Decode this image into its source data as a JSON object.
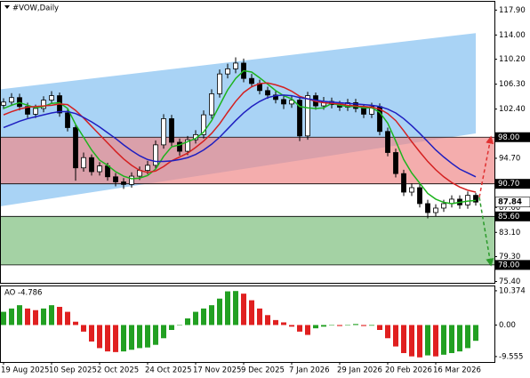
{
  "chart_data": [
    {
      "type": "candlestick",
      "title": "#VOW,Daily",
      "ylim": [
        75.2,
        119.2
      ],
      "yticks": [
        {
          "value": 117.9,
          "label": "117.90"
        },
        {
          "value": 114,
          "label": "114.00"
        },
        {
          "value": 110.2,
          "label": "110.20"
        },
        {
          "value": 106.3,
          "label": "106.30"
        },
        {
          "value": 102.4,
          "label": "102.40"
        },
        {
          "value": 94.7,
          "label": "94.70"
        },
        {
          "value": 87,
          "label": "87.00"
        },
        {
          "value": 83.1,
          "label": "83.10"
        },
        {
          "value": 79.3,
          "label": "79.30"
        },
        {
          "value": 75.4,
          "label": "75.40"
        }
      ],
      "open": [
        103.0,
        103.5,
        104.2,
        102.8,
        101.6,
        102.5,
        103.8,
        104.5,
        101.8,
        99.5,
        93.2,
        94.8,
        92.6,
        93.5,
        91.8,
        91.0,
        90.6,
        91.9,
        92.8,
        93.6,
        96.8,
        100.9,
        97.2,
        95.8,
        97.6,
        98.4,
        101.5,
        104.8,
        107.9,
        108.7,
        109.6,
        107.2,
        106.4,
        105.3,
        104.6,
        103.9,
        103.2,
        103.8,
        98.2,
        104.5,
        102.9,
        103.6,
        103.1,
        102.7,
        103.4,
        102.5,
        101.6,
        102.8,
        98.9,
        95.6,
        92.3,
        89.4,
        90.1,
        87.6,
        86.2,
        86.9,
        87.6,
        88.3,
        87.4,
        88.9
      ],
      "high": [
        104.1,
        104.9,
        104.8,
        103.4,
        103.1,
        104.4,
        105.2,
        105.0,
        102.4,
        100.1,
        95.6,
        95.3,
        94.1,
        94.0,
        92.4,
        91.6,
        92.5,
        93.4,
        94.3,
        97.5,
        101.6,
        101.5,
        97.8,
        98.2,
        99.1,
        102.2,
        105.5,
        108.6,
        109.5,
        110.5,
        110.3,
        107.9,
        107.0,
        105.9,
        105.2,
        104.5,
        104.4,
        104.3,
        105.1,
        105.0,
        104.3,
        104.2,
        103.7,
        104.0,
        104.0,
        103.1,
        103.4,
        103.3,
        99.5,
        96.2,
        92.9,
        90.8,
        90.7,
        88.2,
        87.5,
        88.2,
        88.9,
        88.9,
        89.5,
        89.3
      ],
      "low": [
        102.4,
        102.9,
        102.2,
        101.0,
        101.0,
        101.9,
        103.2,
        101.2,
        98.9,
        91.2,
        92.6,
        92.0,
        92.0,
        91.2,
        90.3,
        89.9,
        90.1,
        91.3,
        92.2,
        93.0,
        96.2,
        96.6,
        95.1,
        95.2,
        97.0,
        97.8,
        100.9,
        104.2,
        107.2,
        108.0,
        106.6,
        105.8,
        104.7,
        104.0,
        103.3,
        102.4,
        102.6,
        97.4,
        97.6,
        102.3,
        102.3,
        102.5,
        102.1,
        102.1,
        101.9,
        101.0,
        101.0,
        98.3,
        95.0,
        91.7,
        88.8,
        88.8,
        87.0,
        85.3,
        85.6,
        86.3,
        87.0,
        86.8,
        86.8,
        87.3
      ],
      "close": [
        103.5,
        104.2,
        102.8,
        101.6,
        102.5,
        103.8,
        104.5,
        101.8,
        99.5,
        93.2,
        94.8,
        92.6,
        93.5,
        91.8,
        91.0,
        90.6,
        91.9,
        92.8,
        93.6,
        96.8,
        100.9,
        97.2,
        95.8,
        97.6,
        98.4,
        101.5,
        104.8,
        107.9,
        108.7,
        109.6,
        107.2,
        106.4,
        105.3,
        104.6,
        103.9,
        103.2,
        103.8,
        98.2,
        104.5,
        102.9,
        103.6,
        103.1,
        102.7,
        103.4,
        102.5,
        101.6,
        102.8,
        98.9,
        95.6,
        92.3,
        89.4,
        90.1,
        87.6,
        86.2,
        86.9,
        87.6,
        88.3,
        87.4,
        88.9,
        87.84
      ],
      "ma": [
        {
          "color": "#1db31d",
          "values": [
            102.5,
            103,
            103.4,
            103,
            102.6,
            102.8,
            103.3,
            103.4,
            102.5,
            100,
            98,
            96,
            94.4,
            93.6,
            92.6,
            91.9,
            91.5,
            91.6,
            92,
            93,
            95,
            96.5,
            96.8,
            97.3,
            97.8,
            98.8,
            100.6,
            103,
            105.4,
            107.2,
            108.4,
            108.2,
            107.3,
            106.3,
            105.3,
            104.5,
            104,
            102.8,
            102.6,
            102.5,
            102.6,
            103.3,
            103,
            102.8,
            102.8,
            102.6,
            102.6,
            101.9,
            100.2,
            97.4,
            94.5,
            92.4,
            90.8,
            89.2,
            88.3,
            87.8,
            87.6,
            87.8,
            88,
            88.1
          ]
        },
        {
          "color": "#d42020",
          "values": [
            101.5,
            102,
            102.4,
            102.7,
            102.8,
            102.9,
            103,
            103.2,
            103.1,
            102.2,
            101,
            99.7,
            98.4,
            97.1,
            95.8,
            94.6,
            93.6,
            92.8,
            92.5,
            92.7,
            93.4,
            94.3,
            94.9,
            95.5,
            96.4,
            97.4,
            98.6,
            100.1,
            101.9,
            103.6,
            105,
            105.9,
            106.4,
            106.5,
            106.2,
            105.8,
            105.2,
            104.4,
            104,
            103.6,
            103.4,
            103.3,
            103.2,
            103,
            102.9,
            102.8,
            102.7,
            102.4,
            101.7,
            100.6,
            99,
            97.3,
            95.7,
            94.2,
            92.9,
            91.8,
            90.9,
            90.2,
            89.7,
            89.4
          ]
        },
        {
          "color": "#1f1fc0",
          "values": [
            99.5,
            100,
            100.5,
            100.9,
            101.2,
            101.5,
            101.8,
            102,
            102,
            101.7,
            101.1,
            100.4,
            99.6,
            98.7,
            97.8,
            96.8,
            95.9,
            95.1,
            94.5,
            94.2,
            94.2,
            94.3,
            94.5,
            94.8,
            95.3,
            96,
            96.9,
            98,
            99.3,
            100.6,
            101.8,
            102.8,
            103.6,
            104.2,
            104.5,
            104.6,
            104.5,
            104.2,
            104,
            103.8,
            103.6,
            103.5,
            103.4,
            103.3,
            103.2,
            103.1,
            103,
            102.8,
            102.4,
            101.8,
            100.9,
            99.8,
            98.6,
            97.3,
            96,
            94.9,
            93.9,
            93,
            92.4,
            91.8
          ]
        }
      ],
      "channel": {
        "upper": [
          105.5,
          114.3
        ],
        "lower": [
          87.2,
          98.6
        ],
        "color": "#a9d3f5"
      },
      "zones": [
        {
          "from": 98,
          "to": 90.7,
          "color": "#f08a8a"
        },
        {
          "from": 85.6,
          "to": 78,
          "color": "#7dbf7d"
        }
      ],
      "levels": [
        {
          "value": 98,
          "label": "98.00"
        },
        {
          "value": 90.7,
          "label": "90.70"
        },
        {
          "value": 85.6,
          "label": "85.60"
        },
        {
          "value": 78,
          "label": "78.00"
        }
      ],
      "price": {
        "value": 87.84,
        "label": "87.84"
      },
      "arrows": [
        {
          "from": 88.6,
          "to": 98,
          "color": "#e03030"
        },
        {
          "from": 88.6,
          "to": 78,
          "color": "#2a9a2a"
        }
      ],
      "candle_colors": {
        "up": "#ffffff",
        "down": "#000000"
      }
    },
    {
      "type": "bar",
      "title": "AO -4.786",
      "ylim": [
        -11.2,
        11.7
      ],
      "yticks": [
        {
          "value": 10.374,
          "label": "10.374"
        },
        {
          "value": 0,
          "label": "0.00"
        },
        {
          "value": -9.555,
          "label": "-9.555"
        }
      ],
      "categories": [
        "19 Aug 2025",
        null,
        null,
        null,
        null,
        null,
        "10 Sep 2025",
        null,
        null,
        null,
        null,
        null,
        "2 Oct 2025",
        null,
        null,
        null,
        null,
        null,
        "24 Oct 2025",
        null,
        null,
        null,
        null,
        null,
        "17 Nov 2025",
        null,
        null,
        null,
        null,
        null,
        "9 Dec 2025",
        null,
        null,
        null,
        null,
        null,
        "7 Jan 2026",
        null,
        null,
        null,
        null,
        null,
        "29 Jan 2026",
        null,
        null,
        null,
        null,
        null,
        "20 Feb 2026",
        null,
        null,
        null,
        null,
        null,
        "16 Mar 2026",
        null,
        null,
        null,
        null,
        null
      ],
      "values": [
        4,
        5,
        6,
        5,
        4.5,
        5,
        6,
        5.5,
        4,
        1,
        -2,
        -5,
        -7,
        -8,
        -8.2,
        -8,
        -7.5,
        -7,
        -6.8,
        -6,
        -4,
        -1.5,
        0,
        2,
        4,
        5,
        6,
        8,
        10.2,
        10.3,
        9.5,
        7.5,
        5,
        3,
        1.5,
        0.8,
        -0.5,
        -2,
        -3,
        -1,
        -0.5,
        0,
        -0.3,
        0.1,
        0.3,
        -0.3,
        -0.2,
        -1.5,
        -4,
        -6.5,
        -8.5,
        -9.5,
        -9.8,
        -9.2,
        -9.5,
        -9,
        -8.5,
        -8,
        -7,
        -4.786
      ],
      "colors": {
        "up": "#22a022",
        "down": "#e02020"
      }
    }
  ]
}
